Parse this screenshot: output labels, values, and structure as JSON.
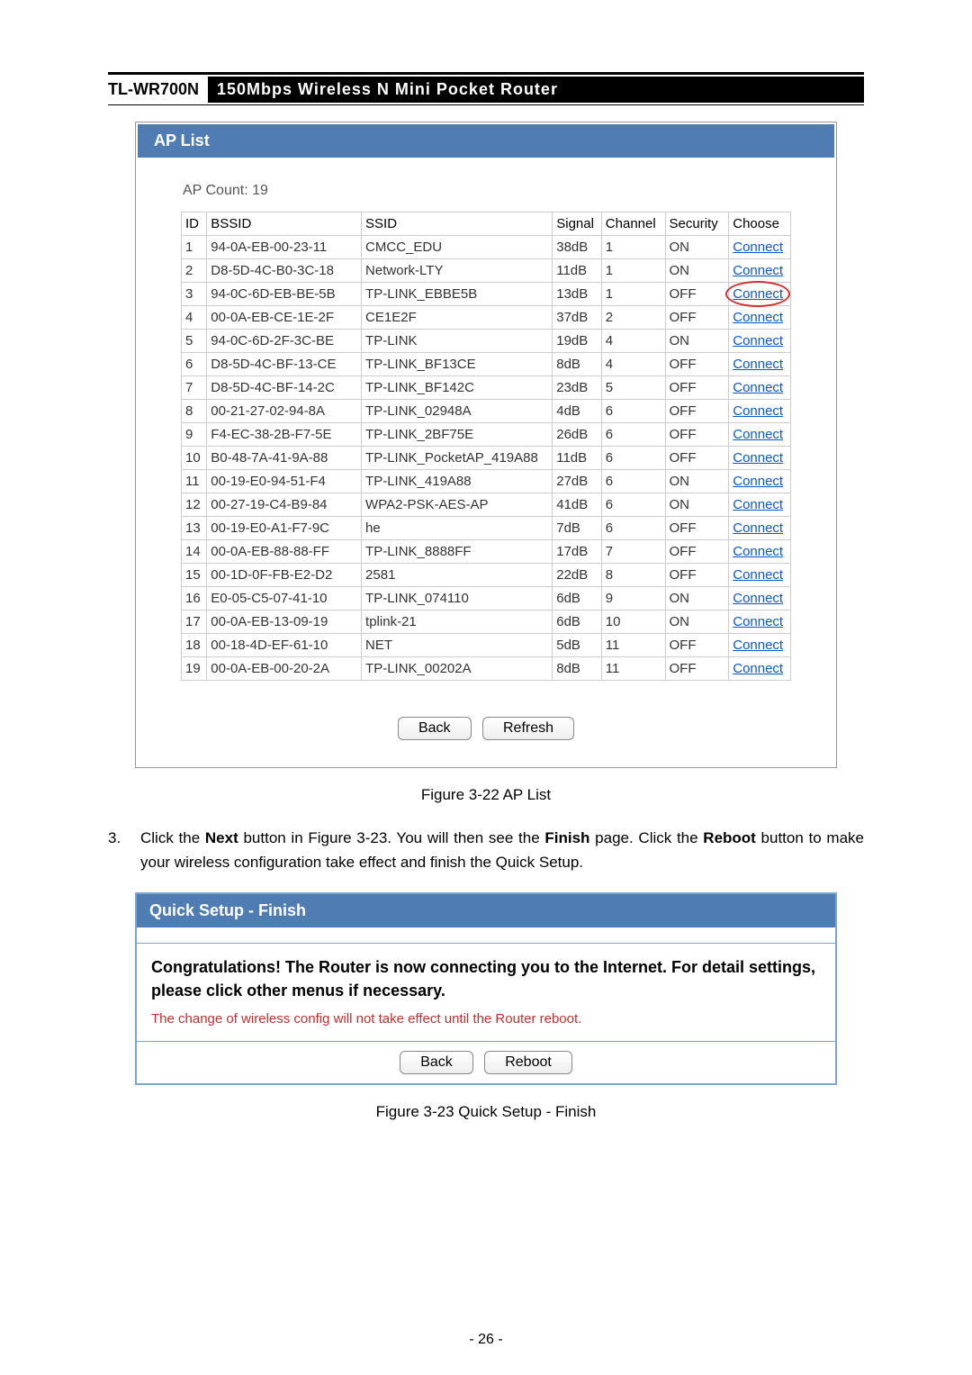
{
  "header": {
    "model": "TL-WR700N",
    "description": "150Mbps Wireless N Mini Pocket Router"
  },
  "ap_list": {
    "title": "AP List",
    "count_label": "AP Count:  19",
    "columns": [
      "ID",
      "BSSID",
      "SSID",
      "Signal",
      "Channel",
      "Security",
      "Choose"
    ],
    "choose_label": "Connect",
    "highlight_row_id": 3,
    "rows": [
      {
        "id": "1",
        "bssid": "94-0A-EB-00-23-11",
        "ssid": "CMCC_EDU",
        "signal": "38dB",
        "channel": "1",
        "security": "ON"
      },
      {
        "id": "2",
        "bssid": "D8-5D-4C-B0-3C-18",
        "ssid": "Network-LTY",
        "signal": "11dB",
        "channel": "1",
        "security": "ON"
      },
      {
        "id": "3",
        "bssid": "94-0C-6D-EB-BE-5B",
        "ssid": "TP-LINK_EBBE5B",
        "signal": "13dB",
        "channel": "1",
        "security": "OFF"
      },
      {
        "id": "4",
        "bssid": "00-0A-EB-CE-1E-2F",
        "ssid": "CE1E2F",
        "signal": "37dB",
        "channel": "2",
        "security": "OFF"
      },
      {
        "id": "5",
        "bssid": "94-0C-6D-2F-3C-BE",
        "ssid": "TP-LINK",
        "signal": "19dB",
        "channel": "4",
        "security": "ON"
      },
      {
        "id": "6",
        "bssid": "D8-5D-4C-BF-13-CE",
        "ssid": "TP-LINK_BF13CE",
        "signal": "8dB",
        "channel": "4",
        "security": "OFF"
      },
      {
        "id": "7",
        "bssid": "D8-5D-4C-BF-14-2C",
        "ssid": "TP-LINK_BF142C",
        "signal": "23dB",
        "channel": "5",
        "security": "OFF"
      },
      {
        "id": "8",
        "bssid": "00-21-27-02-94-8A",
        "ssid": "TP-LINK_02948A",
        "signal": "4dB",
        "channel": "6",
        "security": "OFF"
      },
      {
        "id": "9",
        "bssid": "F4-EC-38-2B-F7-5E",
        "ssid": "TP-LINK_2BF75E",
        "signal": "26dB",
        "channel": "6",
        "security": "OFF"
      },
      {
        "id": "10",
        "bssid": "B0-48-7A-41-9A-88",
        "ssid": "TP-LINK_PocketAP_419A88",
        "signal": "11dB",
        "channel": "6",
        "security": "OFF"
      },
      {
        "id": "11",
        "bssid": "00-19-E0-94-51-F4",
        "ssid": "TP-LINK_419A88",
        "signal": "27dB",
        "channel": "6",
        "security": "ON"
      },
      {
        "id": "12",
        "bssid": "00-27-19-C4-B9-84",
        "ssid": "WPA2-PSK-AES-AP",
        "signal": "41dB",
        "channel": "6",
        "security": "ON"
      },
      {
        "id": "13",
        "bssid": "00-19-E0-A1-F7-9C",
        "ssid": "he",
        "signal": "7dB",
        "channel": "6",
        "security": "OFF"
      },
      {
        "id": "14",
        "bssid": "00-0A-EB-88-88-FF",
        "ssid": "TP-LINK_8888FF",
        "signal": "17dB",
        "channel": "7",
        "security": "OFF"
      },
      {
        "id": "15",
        "bssid": "00-1D-0F-FB-E2-D2",
        "ssid": "2581",
        "signal": "22dB",
        "channel": "8",
        "security": "OFF"
      },
      {
        "id": "16",
        "bssid": "E0-05-C5-07-41-10",
        "ssid": "TP-LINK_074110",
        "signal": "6dB",
        "channel": "9",
        "security": "ON"
      },
      {
        "id": "17",
        "bssid": "00-0A-EB-13-09-19",
        "ssid": "tplink-21",
        "signal": "6dB",
        "channel": "10",
        "security": "ON"
      },
      {
        "id": "18",
        "bssid": "00-18-4D-EF-61-10",
        "ssid": "NET",
        "signal": "5dB",
        "channel": "11",
        "security": "OFF"
      },
      {
        "id": "19",
        "bssid": "00-0A-EB-00-20-2A",
        "ssid": "TP-LINK_00202A",
        "signal": "8dB",
        "channel": "11",
        "security": "OFF"
      }
    ],
    "buttons": {
      "back": "Back",
      "refresh": "Refresh"
    },
    "caption": "Figure 3-22 AP List"
  },
  "step3": {
    "number": "3.",
    "t1": "Click the ",
    "b1": "Next",
    "t2": " button in Figure 3-23. You will then see the ",
    "b2": "Finish",
    "t3": " page. Click the ",
    "b3": "Reboot",
    "t4": " button to make your wireless configuration take effect and finish the Quick Setup."
  },
  "quick_setup": {
    "title": "Quick Setup - Finish",
    "congrats": "Congratulations! The Router is now connecting you to the Internet. For detail settings, please click other menus if necessary.",
    "warn": "The change of wireless config will not take effect until the Router reboot.",
    "buttons": {
      "back": "Back",
      "reboot": "Reboot"
    },
    "caption": "Figure 3-23 Quick Setup - Finish"
  },
  "footer": {
    "page_num": "- 26 -"
  }
}
